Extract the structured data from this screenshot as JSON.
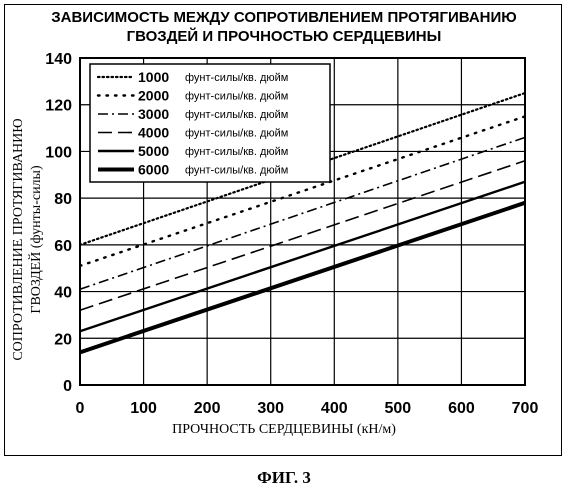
{
  "chart_data": {
    "type": "line",
    "title": [
      "ЗАВИСИМОСТЬ МЕЖДУ СОПРОТИВЛЕНИЕМ ПРОТЯГИВАНИЮ",
      "ГВОЗДЕЙ И ПРОЧНОСТЬЮ СЕРДЦЕВИНЫ"
    ],
    "xlabel": "ПРОЧНОСТЬ СЕРДЦЕВИНЫ (кН/м)",
    "ylabel": [
      "СОПРОТИВЛЕНИЕ ПРОТЯГИВАНИЮ",
      "ГВОЗДЕЙ (фунты-силы)"
    ],
    "xlim": [
      0,
      700
    ],
    "ylim": [
      0,
      140
    ],
    "xticks": [
      0,
      100,
      200,
      300,
      400,
      500,
      600,
      700
    ],
    "yticks": [
      0,
      20,
      40,
      60,
      80,
      100,
      120,
      140
    ],
    "grid": true,
    "legend_position": "top-left",
    "legend_unit": "фунт-силы/кв. дюйм",
    "series": [
      {
        "name": "1000",
        "style": "dotted-fine",
        "x": [
          0,
          700
        ],
        "y": [
          60,
          125
        ]
      },
      {
        "name": "2000",
        "style": "dotted-coarse",
        "x": [
          0,
          700
        ],
        "y": [
          51,
          115
        ]
      },
      {
        "name": "3000",
        "style": "dash-dot",
        "x": [
          0,
          700
        ],
        "y": [
          41,
          106
        ]
      },
      {
        "name": "4000",
        "style": "dashed",
        "x": [
          0,
          700
        ],
        "y": [
          32,
          96
        ]
      },
      {
        "name": "5000",
        "style": "solid",
        "x": [
          0,
          700
        ],
        "y": [
          23,
          87
        ]
      },
      {
        "name": "6000",
        "style": "solid-thick",
        "x": [
          0,
          700
        ],
        "y": [
          14,
          78
        ]
      }
    ]
  },
  "caption": "ФИГ. 3"
}
